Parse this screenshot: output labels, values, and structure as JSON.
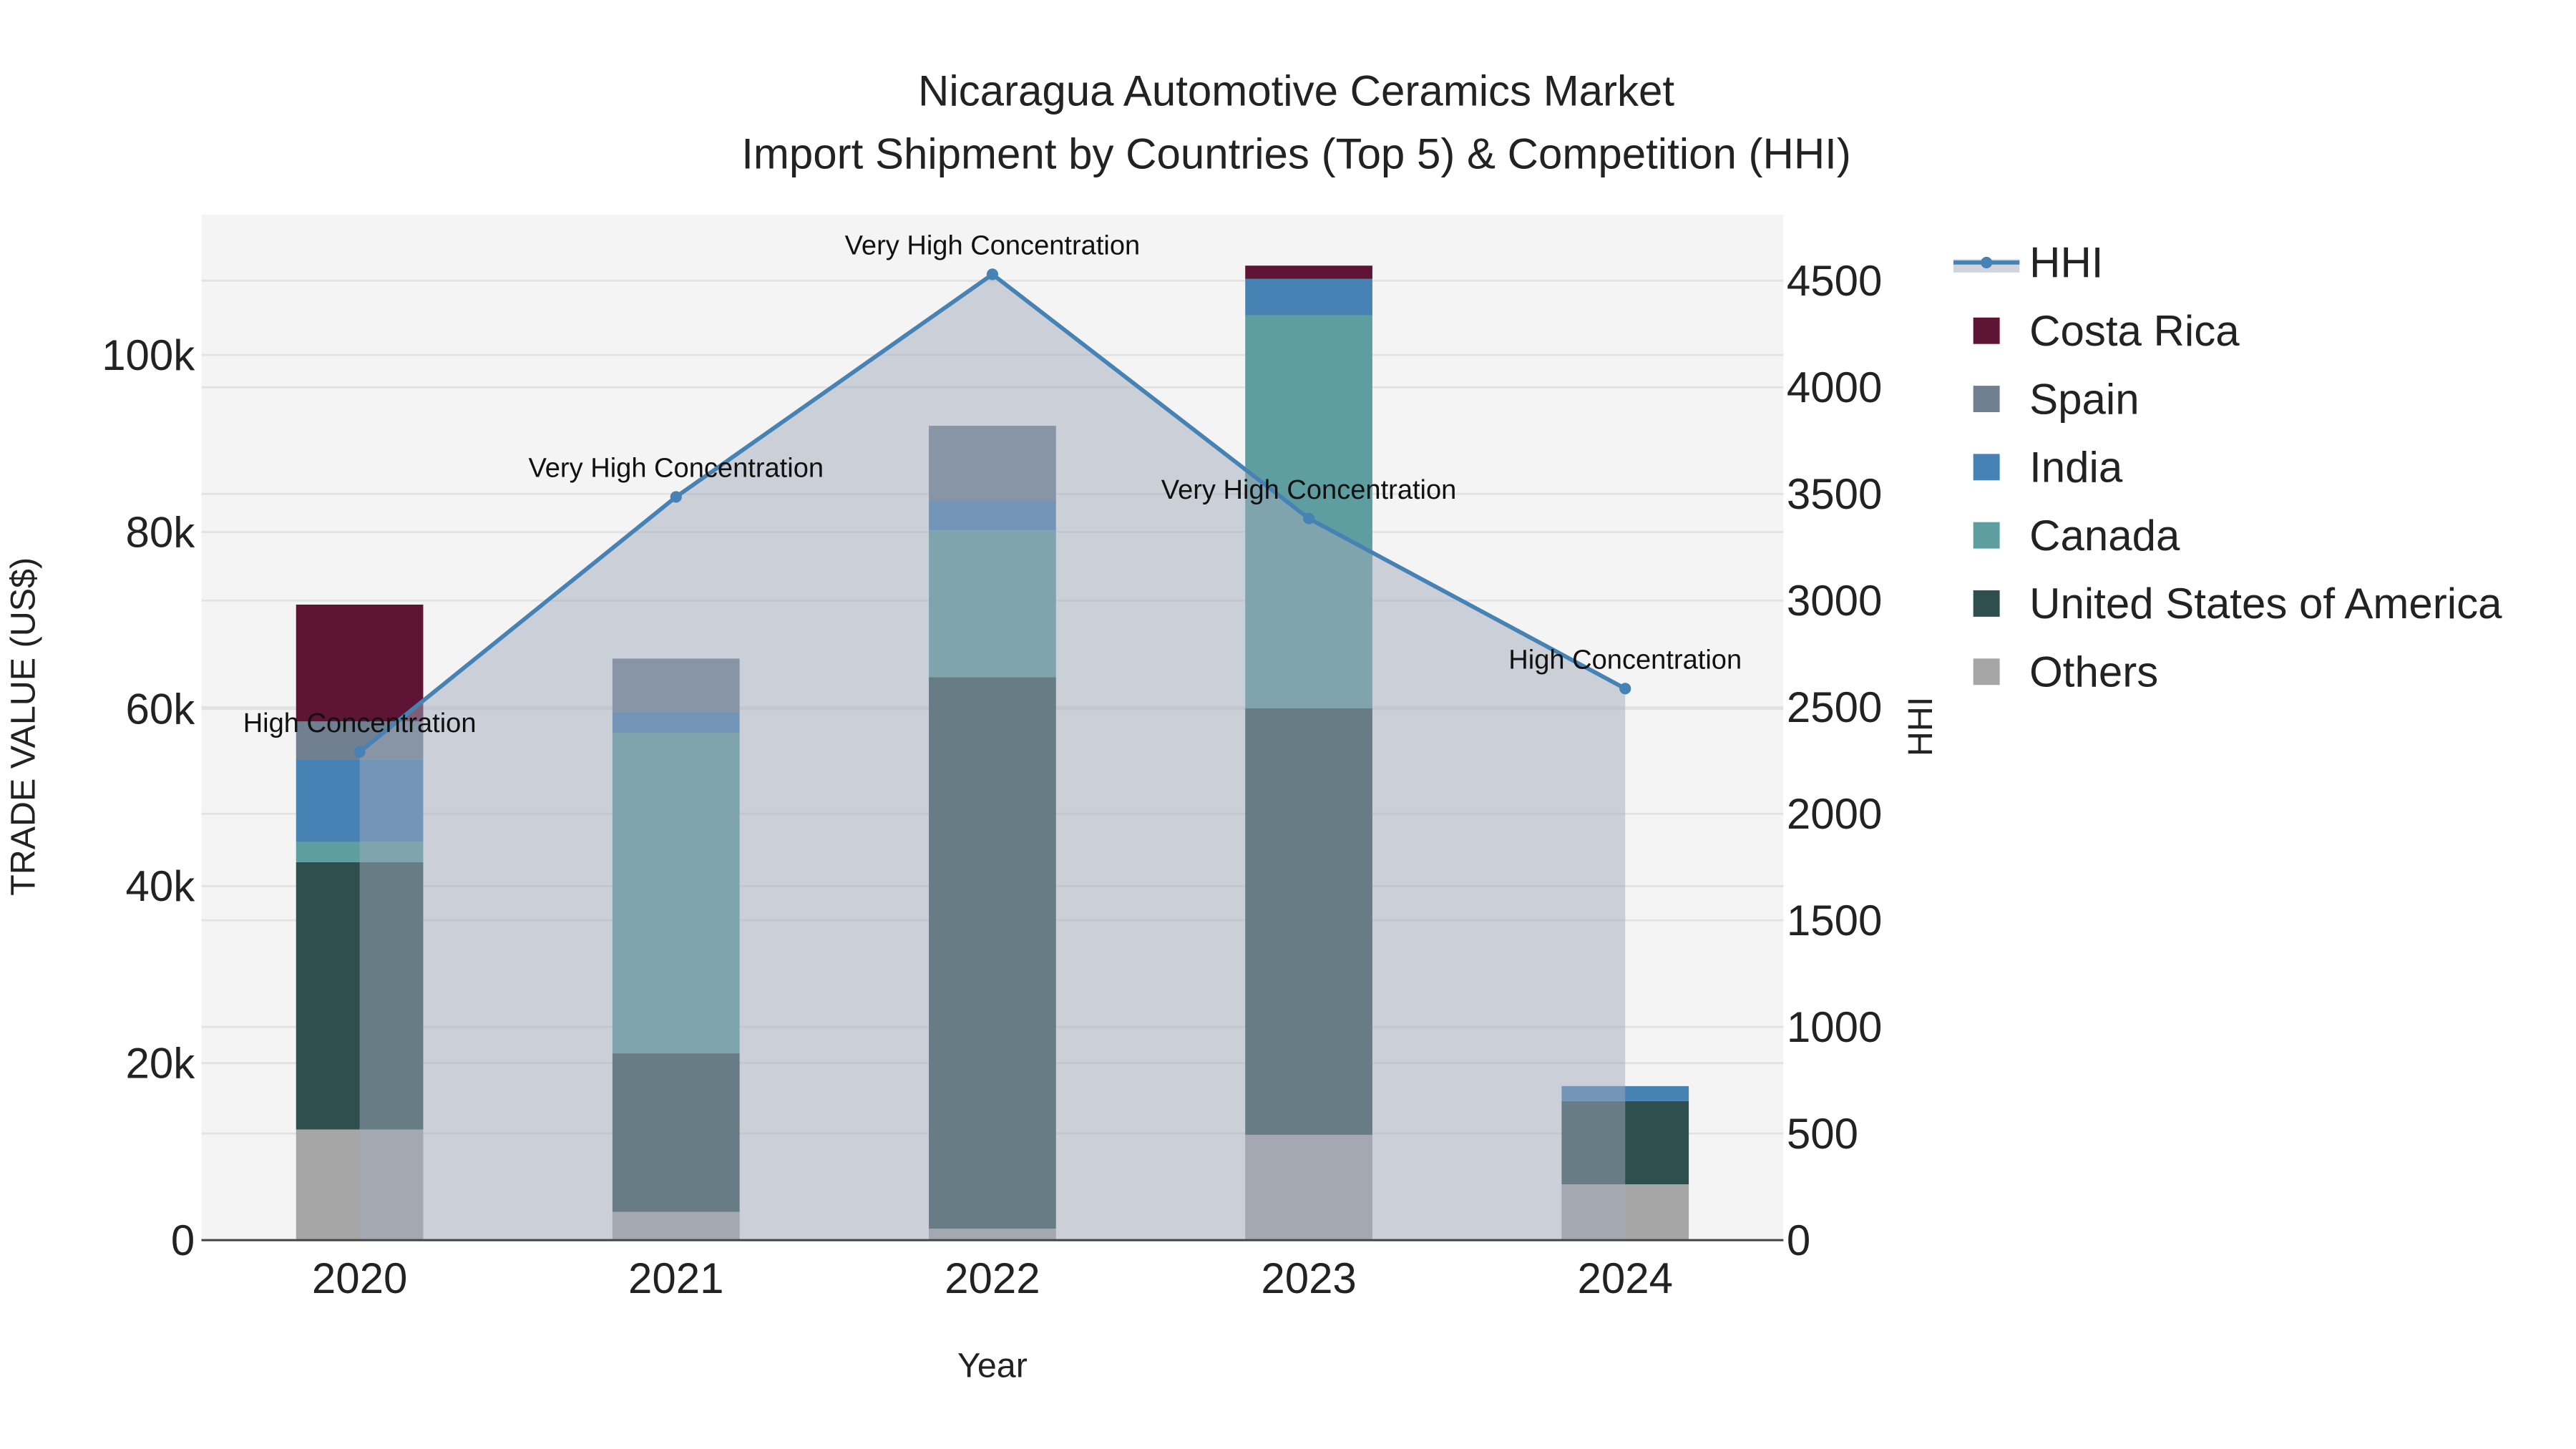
{
  "chart_data": {
    "type": "bar",
    "title": "Nicaragua Automotive Ceramics Market",
    "subtitle": "Import Shipment by Countries (Top 5) & Competition (HHI)",
    "xlabel": "Year",
    "ylabel": "TRADE VALUE (US$)",
    "y2label": "HHI",
    "categories": [
      "2020",
      "2021",
      "2022",
      "2023",
      "2024"
    ],
    "ylim": [
      0,
      115000
    ],
    "y2lim": [
      0,
      4800
    ],
    "yticks": [
      0,
      20000,
      40000,
      60000,
      80000,
      100000
    ],
    "ytick_labels": [
      "0",
      "20k",
      "40k",
      "60k",
      "80k",
      "100k"
    ],
    "y2ticks": [
      0,
      500,
      1000,
      1500,
      2000,
      2500,
      3000,
      3500,
      4000,
      4500
    ],
    "y2tick_labels": [
      "0",
      "500",
      "1000",
      "1500",
      "2000",
      "2500",
      "3000",
      "3500",
      "4000",
      "4500"
    ],
    "grid": true,
    "legend_placement": "right",
    "series": [
      {
        "name": "Others",
        "color": "#a6a6a6",
        "values": [
          12500,
          3200,
          1300,
          11900,
          6300
        ]
      },
      {
        "name": "United States of America",
        "color": "#2f4f4f",
        "values": [
          30200,
          17900,
          62300,
          48200,
          9400
        ]
      },
      {
        "name": "Canada",
        "color": "#5f9ea0",
        "values": [
          2300,
          36200,
          16600,
          44400,
          0
        ]
      },
      {
        "name": "India",
        "color": "#4682b4",
        "values": [
          9300,
          2400,
          3400,
          4100,
          1700
        ]
      },
      {
        "name": "Spain",
        "color": "#708090",
        "values": [
          4300,
          6000,
          8400,
          0,
          0
        ]
      },
      {
        "name": "Costa Rica",
        "color": "#5e1434",
        "values": [
          13200,
          0,
          0,
          1500,
          0
        ]
      }
    ],
    "hhi": {
      "name": "HHI",
      "color": "#4682b4",
      "values": [
        2290,
        3486,
        4530,
        3385,
        2587
      ],
      "annotations": [
        "High Concentration",
        "Very High Concentration",
        "Very High Concentration",
        "Very High Concentration",
        "High Concentration"
      ]
    },
    "legend_order": [
      "HHI",
      "Costa Rica",
      "Spain",
      "India",
      "Canada",
      "United States of America",
      "Others"
    ]
  }
}
